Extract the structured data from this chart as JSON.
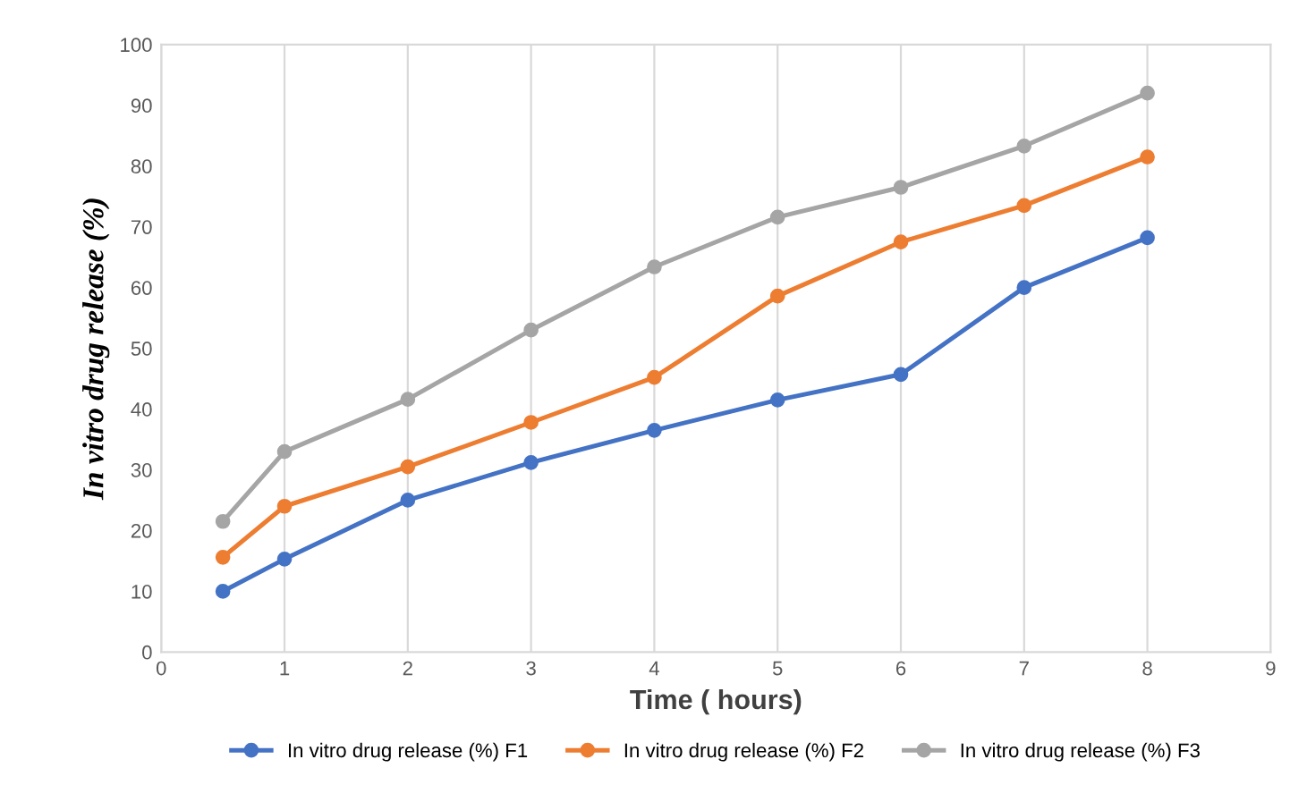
{
  "chart_data": {
    "type": "line",
    "xlabel": "Time ( hours)",
    "ylabel": "In vitro drug release (%)",
    "x": [
      0.5,
      1,
      2,
      3,
      4,
      5,
      6,
      7,
      8
    ],
    "series": [
      {
        "name": "In vitro drug release (%) F1",
        "color": "#4472c4",
        "values": [
          10,
          15.3,
          25,
          31.2,
          36.5,
          41.5,
          45.7,
          60,
          68.2
        ]
      },
      {
        "name": "In vitro drug release (%) F2",
        "color": "#ed7d31",
        "values": [
          15.6,
          24,
          30.5,
          37.8,
          45.2,
          58.6,
          67.5,
          73.5,
          81.5
        ]
      },
      {
        "name": "In vitro drug release (%) F3",
        "color": "#a5a5a5",
        "values": [
          21.5,
          33,
          41.6,
          53,
          63.4,
          71.6,
          76.5,
          83.3,
          92
        ]
      }
    ],
    "xlim": [
      0,
      9
    ],
    "xticks": [
      0,
      1,
      2,
      3,
      4,
      5,
      6,
      7,
      8,
      9
    ],
    "ylim": [
      0,
      100
    ],
    "yticks": [
      0,
      10,
      20,
      30,
      40,
      50,
      60,
      70,
      80,
      90,
      100
    ],
    "grid": "x",
    "legend": "bottom",
    "marker": "circle",
    "line_style": "solid"
  }
}
